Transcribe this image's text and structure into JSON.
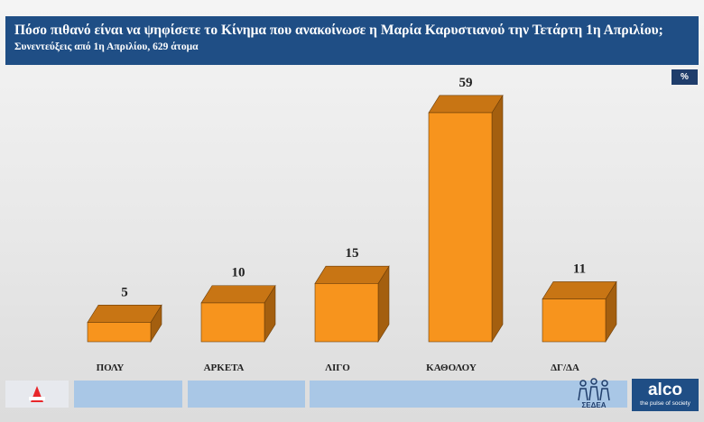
{
  "header": {
    "title": "Πόσο πιθανό είναι να ψηφίσετε το Κίνημα που ανακοίνωσε η Μαρία Καρυστιανού την Τετάρτη 1η Απριλίου;",
    "subtitle": "Συνεντεύξεις από 1η Απριλίου, 629 άτομα"
  },
  "unit_badge": "%",
  "colors": {
    "header_bg": "#1f4e85",
    "bar_front": "#f7941d",
    "bar_top": "#c87514",
    "bar_side": "#a45f0f",
    "footer_block": "#a9c7e6",
    "logo_red": "#e8262a"
  },
  "chart_data": {
    "type": "bar",
    "categories": [
      "ΠΟΛΥ",
      "ΑΡΚΕΤΑ",
      "ΛΙΓΟ",
      "ΚΑΘΟΛΟΥ",
      "ΔΓ/ΔΑ"
    ],
    "values": [
      5,
      10,
      15,
      59,
      11
    ],
    "data_labels": [
      "5",
      "10",
      "15",
      "59",
      "11"
    ],
    "ylim": [
      0,
      59
    ],
    "grid": false,
    "legend": "none"
  },
  "footer": {
    "sedea_label": "ΣΕΔΕΑ",
    "alco_logo": "alco",
    "alco_tagline": "the pulse of society"
  }
}
